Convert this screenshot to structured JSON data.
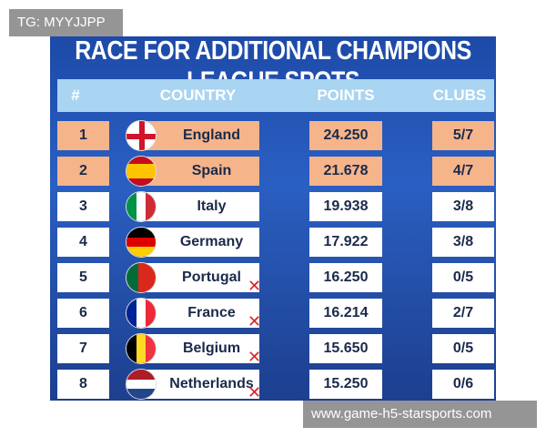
{
  "watermark_top": "TG: MYYJJPP",
  "title": "RACE FOR ADDITIONAL CHAMPIONS LEAGUE SPOTS",
  "table": {
    "headers": [
      "#",
      "COUNTRY",
      "POINTS",
      "CLUBS"
    ],
    "rows": [
      [
        "1",
        "England",
        "24.250",
        "5/7"
      ],
      [
        "2",
        "Spain",
        "21.678",
        "4/7"
      ],
      [
        "3",
        "Italy",
        "19.938",
        "3/8"
      ],
      [
        "4",
        "Germany",
        "17.922",
        "3/8"
      ],
      [
        "5",
        "Portugal",
        "16.250",
        "0/5"
      ],
      [
        "6",
        "France",
        "16.214",
        "2/7"
      ],
      [
        "7",
        "Belgium",
        "15.650",
        "0/5"
      ],
      [
        "8",
        "Netherlands",
        "15.250",
        "0/6"
      ]
    ]
  },
  "watermark_bottom": "www.game-h5-starsports.com"
}
